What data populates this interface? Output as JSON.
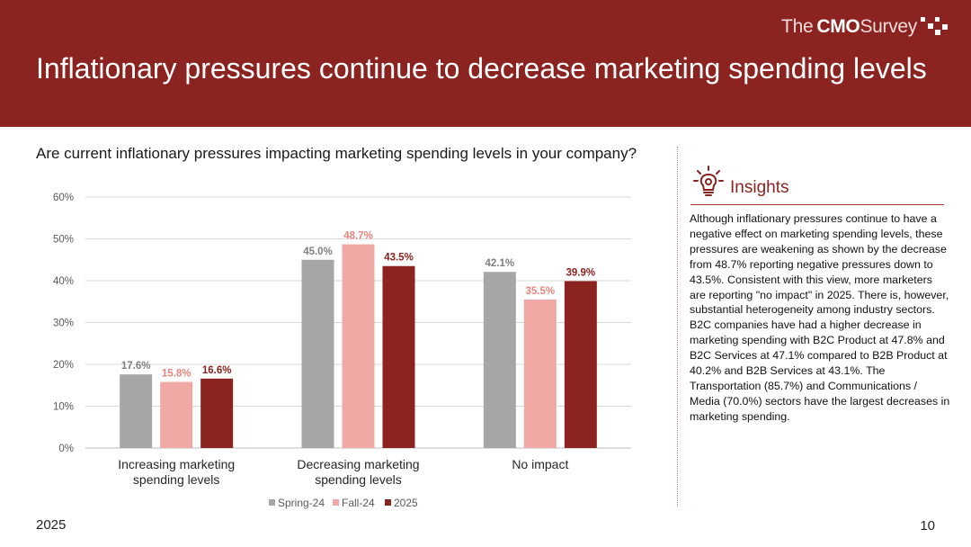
{
  "header": {
    "brand_light": "The",
    "brand_bold": "CMO",
    "brand_light2": "Survey",
    "title": "Inflationary pressures continue to decrease marketing spending levels"
  },
  "question": "Are current inflationary pressures impacting marketing spending levels in your company?",
  "insights": {
    "title": "Insights",
    "icon": "lightbulb-icon",
    "text": "Although inflationary pressures continue to have a negative effect on marketing spending levels, these pressures are weakening as shown by the decrease from 48.7% reporting negative pressures down to 43.5%. Consistent with this view, more marketers are reporting \"no impact\" in 2025. There is, however, substantial heterogeneity among industry sectors. B2C companies have had a higher decrease in marketing spending with B2C Product at 47.8% and B2C Services at 47.1% compared to B2B Product at 40.2% and B2B Services at 43.1%. The Transportation (85.7%) and Communications / Media (70.0%) sectors have the largest decreases in marketing spending."
  },
  "footer": {
    "year": "2025",
    "page": "10"
  },
  "colors": {
    "header_bg": "#8b2320",
    "spring": "#a6a6a6",
    "fall": "#f0a9a4",
    "y2025": "#8b2320"
  },
  "chart_data": {
    "type": "bar",
    "categories": [
      [
        "Increasing marketing",
        "spending levels"
      ],
      [
        "Decreasing marketing",
        "spending levels"
      ],
      [
        "No impact"
      ]
    ],
    "series": [
      {
        "name": "Spring-24",
        "values": [
          17.6,
          45.0,
          42.1
        ],
        "labels": [
          "17.6%",
          "45.0%",
          "42.1%"
        ],
        "color": "#a6a6a6",
        "label_color": "#7f7f7f"
      },
      {
        "name": "Fall-24",
        "values": [
          15.8,
          48.7,
          35.5
        ],
        "labels": [
          "15.8%",
          "48.7%",
          "35.5%"
        ],
        "color": "#f0a9a4",
        "label_color": "#e8857e"
      },
      {
        "name": "2025",
        "values": [
          16.6,
          43.5,
          39.9
        ],
        "labels": [
          "16.6%",
          "43.5%",
          "39.9%"
        ],
        "color": "#8b2320",
        "label_color": "#8b2320"
      }
    ],
    "y_ticks": [
      "0%",
      "10%",
      "20%",
      "30%",
      "40%",
      "50%",
      "60%"
    ],
    "ylim": [
      0,
      60
    ],
    "grid": true,
    "legend_position": "bottom"
  }
}
